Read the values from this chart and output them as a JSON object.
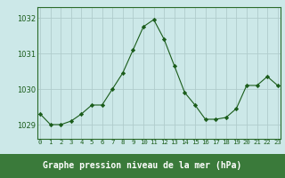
{
  "x": [
    0,
    1,
    2,
    3,
    4,
    5,
    6,
    7,
    8,
    9,
    10,
    11,
    12,
    13,
    14,
    15,
    16,
    17,
    18,
    19,
    20,
    21,
    22,
    23
  ],
  "y": [
    1029.3,
    1029.0,
    1029.0,
    1029.1,
    1029.3,
    1029.55,
    1029.55,
    1030.0,
    1030.45,
    1031.1,
    1031.75,
    1031.95,
    1031.4,
    1030.65,
    1029.9,
    1029.55,
    1029.15,
    1029.15,
    1029.2,
    1029.45,
    1030.1,
    1030.1,
    1030.35,
    1030.1
  ],
  "line_color": "#1a5c1a",
  "marker": "D",
  "marker_size": 2.2,
  "bg_color": "#cce8e8",
  "grid_color": "#b0cccc",
  "title": "Graphe pression niveau de la mer (hPa)",
  "ylim_min": 1028.6,
  "ylim_max": 1032.3,
  "xlim_min": -0.3,
  "xlim_max": 23.3,
  "yticks": [
    1029,
    1030,
    1031,
    1032
  ],
  "xticks": [
    0,
    1,
    2,
    3,
    4,
    5,
    6,
    7,
    8,
    9,
    10,
    11,
    12,
    13,
    14,
    15,
    16,
    17,
    18,
    19,
    20,
    21,
    22,
    23
  ],
  "tick_color": "#1a5c1a",
  "ytick_fontsize": 6.0,
  "xtick_fontsize": 5.2,
  "title_fontsize": 7.0,
  "title_color": "#1a5c1a",
  "title_bg_color": "#3a7a3a",
  "spine_color": "#2a6a2a"
}
